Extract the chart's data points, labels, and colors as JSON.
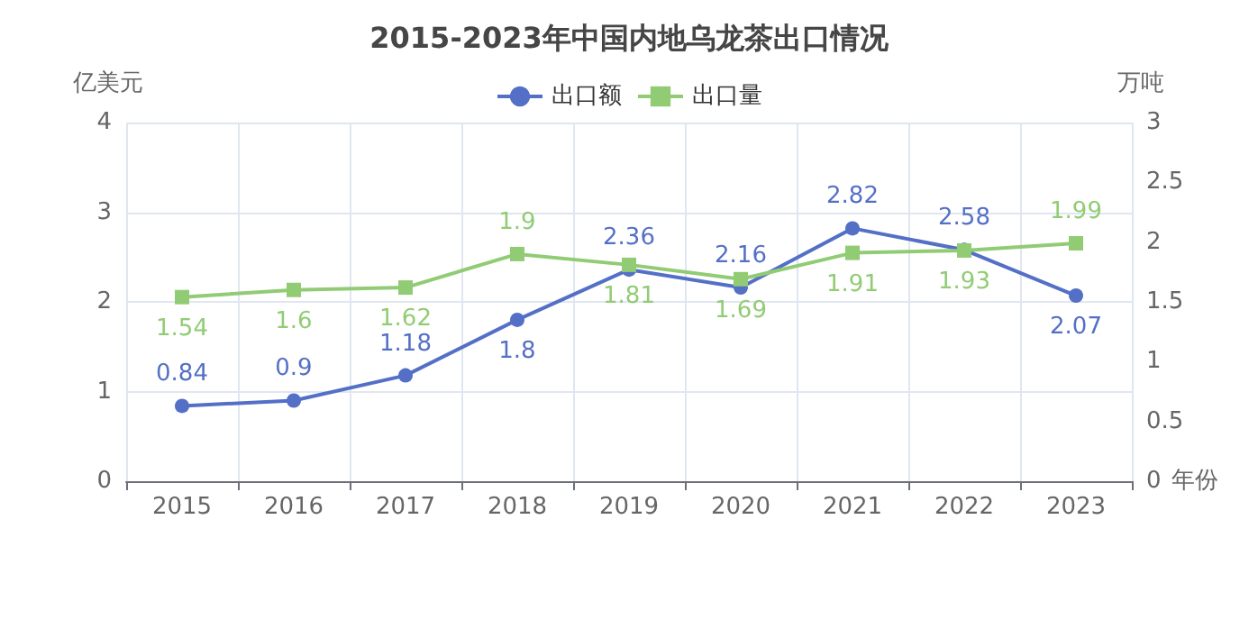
{
  "chart_data": {
    "type": "line",
    "title": "2015-2023年中国内地乌龙茶出口情况",
    "xlabel": "年份",
    "ylabel": "亿美元",
    "y2label": "万吨",
    "categories": [
      "2015",
      "2016",
      "2017",
      "2018",
      "2019",
      "2020",
      "2021",
      "2022",
      "2023"
    ],
    "series": [
      {
        "name": "出口额",
        "color": "#5470c6",
        "marker": "circle",
        "values": [
          0.84,
          0.9,
          1.18,
          1.8,
          2.36,
          2.16,
          2.82,
          2.58,
          2.07
        ]
      },
      {
        "name": "出口量",
        "color": "#91cc75",
        "marker": "square",
        "axis": "y2",
        "values": [
          1.54,
          1.6,
          1.62,
          1.9,
          1.81,
          1.69,
          1.91,
          1.93,
          1.99
        ]
      }
    ],
    "ylim": [
      0,
      4
    ],
    "yticks": [
      0,
      1,
      2,
      3,
      4
    ],
    "y2lim": [
      0,
      3
    ],
    "y2ticks": [
      0,
      0.5,
      1,
      1.5,
      2,
      2.5,
      3
    ],
    "data_labels": true,
    "grid": true,
    "legend": "top"
  }
}
